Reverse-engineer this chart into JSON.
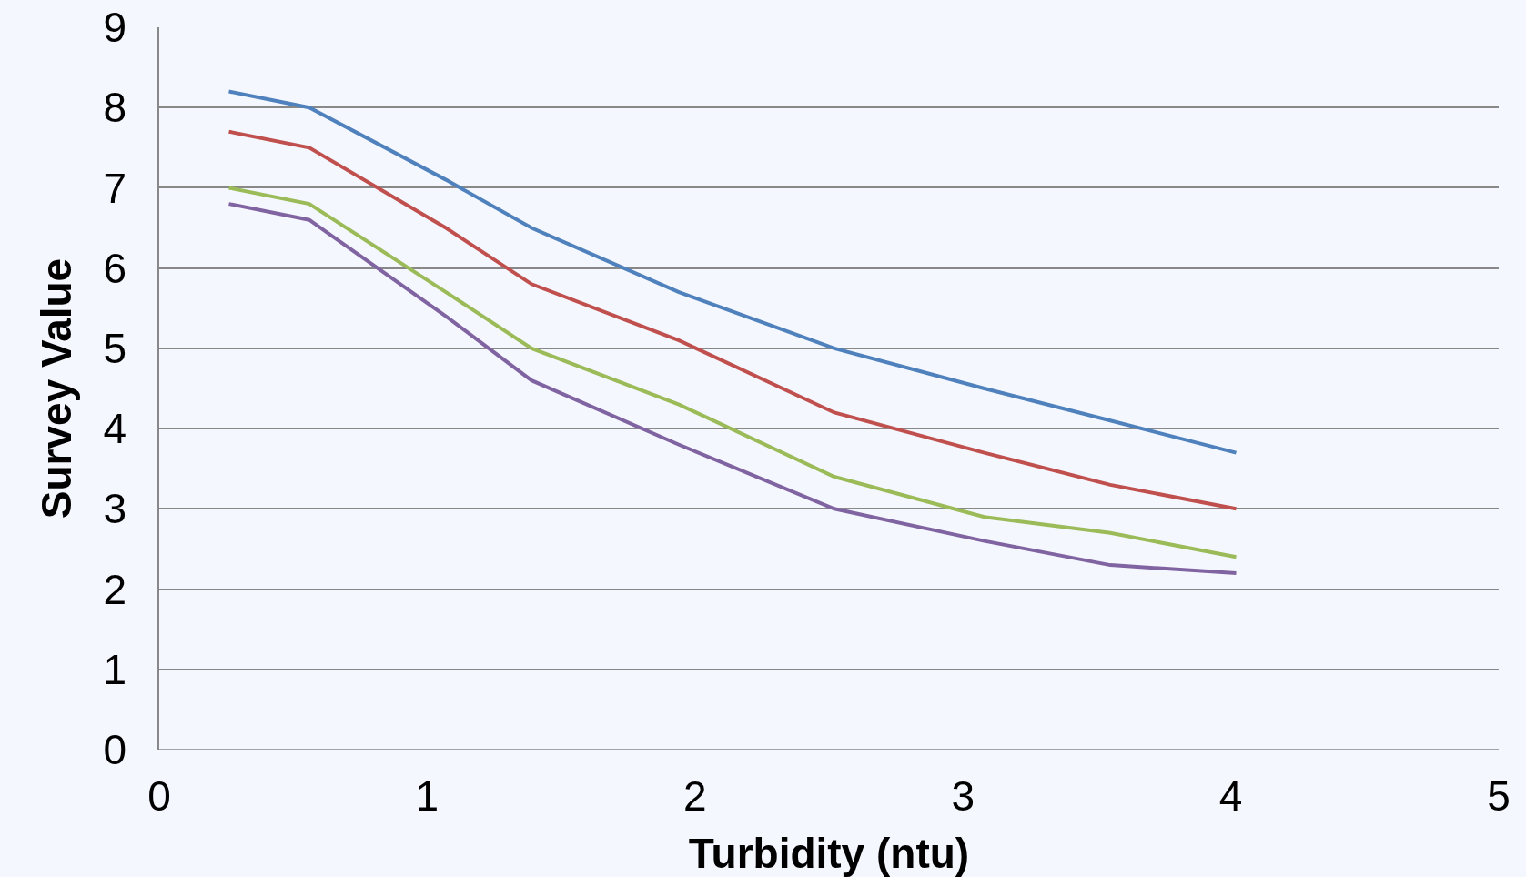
{
  "chart_data": {
    "type": "line",
    "xlabel": "Turbidity (ntu)",
    "ylabel": "Survey Value",
    "x": [
      0.26,
      0.56,
      1.07,
      1.39,
      1.94,
      2.52,
      3.08,
      3.55,
      4.02
    ],
    "series": [
      {
        "color": "#4f81bd",
        "values": [
          8.2,
          8.0,
          7.1,
          6.5,
          5.7,
          5.0,
          4.5,
          4.1,
          3.7
        ]
      },
      {
        "color": "#c0504d",
        "values": [
          7.7,
          7.5,
          6.5,
          5.8,
          5.1,
          4.2,
          3.7,
          3.3,
          3.0
        ]
      },
      {
        "color": "#9bbb59",
        "values": [
          7.0,
          6.8,
          5.7,
          5.0,
          4.3,
          3.4,
          2.9,
          2.7,
          2.4
        ]
      },
      {
        "color": "#8064a2",
        "values": [
          6.8,
          6.6,
          5.4,
          4.6,
          3.8,
          3.0,
          2.6,
          2.3,
          2.2
        ]
      }
    ],
    "xlim": [
      0,
      5
    ],
    "xticks": [
      0,
      1,
      2,
      3,
      4,
      5
    ],
    "ylim": [
      0,
      9
    ],
    "yticks": [
      0,
      1,
      2,
      3,
      4,
      5,
      6,
      7,
      8,
      9
    ],
    "grid": "y",
    "marker": "none",
    "line_style": "solid"
  }
}
